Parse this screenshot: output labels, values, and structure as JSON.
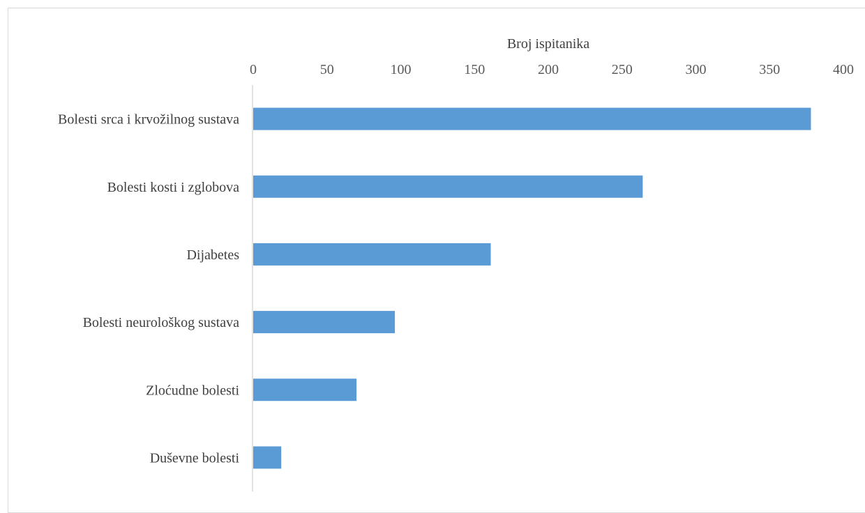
{
  "chart_data": {
    "type": "bar",
    "orientation": "horizontal",
    "title": "",
    "xlabel": "Broj ispitanika",
    "ylabel": "",
    "xlim": [
      0,
      400
    ],
    "xticks": [
      0,
      50,
      100,
      150,
      200,
      250,
      300,
      350,
      400
    ],
    "xtick_labels": [
      "0",
      "50",
      "100",
      "150",
      "200",
      "250",
      "300",
      "350",
      "400"
    ],
    "x_axis_position": "top",
    "grid": false,
    "legend": "none",
    "categories": [
      "Bolesti srca i krvožilnog sustava",
      "Bolesti kosti i zglobova",
      "Dijabetes",
      "Bolesti neurološkog sustava",
      "Zloćudne bolesti",
      "Duševne bolesti"
    ],
    "values": [
      378,
      264,
      161,
      96,
      70,
      19
    ],
    "bar_color": "#5b9bd5"
  }
}
